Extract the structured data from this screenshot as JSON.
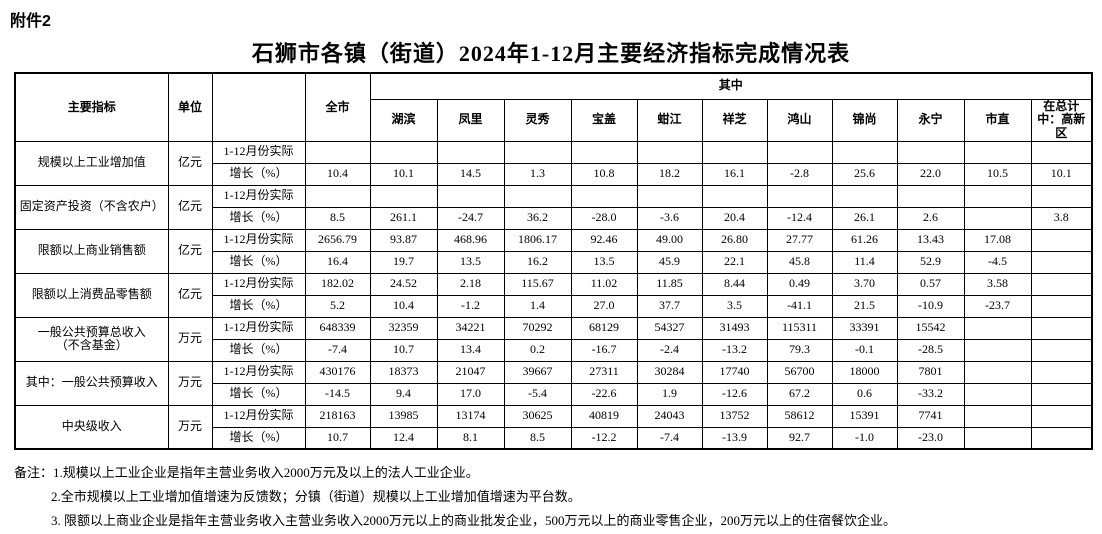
{
  "attachment_label": "附件2",
  "title": "石狮市各镇（街道）2024年1-12月主要经济指标完成情况表",
  "colors": {
    "text": "#000000",
    "border": "#000000",
    "background": "#ffffff"
  },
  "table": {
    "header": {
      "indicator": "主要指标",
      "unit": "单位",
      "period_col": "",
      "citywide": "全市",
      "among": "其中",
      "towns": [
        "湖滨",
        "凤里",
        "灵秀",
        "宝盖",
        "蚶江",
        "祥芝",
        "鸿山",
        "锦尚",
        "永宁",
        "市直"
      ],
      "hightech": "在总计中：高新区"
    },
    "row_labels": {
      "actual": "1-12月份实际",
      "growth": "增长（%）"
    },
    "column_order": [
      "全市",
      "湖滨",
      "凤里",
      "灵秀",
      "宝盖",
      "蚶江",
      "祥芝",
      "鸿山",
      "锦尚",
      "永宁",
      "市直",
      "在总计中：高新区"
    ],
    "indicators": [
      {
        "name": "规模以上工业增加值",
        "unit": "亿元",
        "actual": [
          "",
          "",
          "",
          "",
          "",
          "",
          "",
          "",
          "",
          "",
          "",
          ""
        ],
        "growth": [
          "10.4",
          "10.1",
          "14.5",
          "1.3",
          "10.8",
          "18.2",
          "16.1",
          "-2.8",
          "25.6",
          "22.0",
          "10.5",
          "10.1"
        ]
      },
      {
        "name": "固定资产投资（不含农户）",
        "unit": "亿元",
        "actual": [
          "",
          "",
          "",
          "",
          "",
          "",
          "",
          "",
          "",
          "",
          "",
          ""
        ],
        "growth": [
          "8.5",
          "261.1",
          "-24.7",
          "36.2",
          "-28.0",
          "-3.6",
          "20.4",
          "-12.4",
          "26.1",
          "2.6",
          "",
          "3.8"
        ]
      },
      {
        "name": "限额以上商业销售额",
        "unit": "亿元",
        "actual": [
          "2656.79",
          "93.87",
          "468.96",
          "1806.17",
          "92.46",
          "49.00",
          "26.80",
          "27.77",
          "61.26",
          "13.43",
          "17.08",
          ""
        ],
        "growth": [
          "16.4",
          "19.7",
          "13.5",
          "16.2",
          "13.5",
          "45.9",
          "22.1",
          "45.8",
          "11.4",
          "52.9",
          "-4.5",
          ""
        ]
      },
      {
        "name": "限额以上消费品零售额",
        "unit": "亿元",
        "actual": [
          "182.02",
          "24.52",
          "2.18",
          "115.67",
          "11.02",
          "11.85",
          "8.44",
          "0.49",
          "3.70",
          "0.57",
          "3.58",
          ""
        ],
        "growth": [
          "5.2",
          "10.4",
          "-1.2",
          "1.4",
          "27.0",
          "37.7",
          "3.5",
          "-41.1",
          "21.5",
          "-10.9",
          "-23.7",
          ""
        ]
      },
      {
        "name": "一般公共预算总收入\n（不含基金）",
        "unit": "万元",
        "actual": [
          "648339",
          "32359",
          "34221",
          "70292",
          "68129",
          "54327",
          "31493",
          "115311",
          "33391",
          "15542",
          "",
          ""
        ],
        "growth": [
          "-7.4",
          "10.7",
          "13.4",
          "0.2",
          "-16.7",
          "-2.4",
          "-13.2",
          "79.3",
          "-0.1",
          "-28.5",
          "",
          ""
        ]
      },
      {
        "name": "其中：一般公共预算收入",
        "unit": "万元",
        "actual": [
          "430176",
          "18373",
          "21047",
          "39667",
          "27311",
          "30284",
          "17740",
          "56700",
          "18000",
          "7801",
          "",
          ""
        ],
        "growth": [
          "-14.5",
          "9.4",
          "17.0",
          "-5.4",
          "-22.6",
          "1.9",
          "-12.6",
          "67.2",
          "0.6",
          "-33.2",
          "",
          ""
        ]
      },
      {
        "name": "中央级收入",
        "unit": "万元",
        "actual": [
          "218163",
          "13985",
          "13174",
          "30625",
          "40819",
          "24043",
          "13752",
          "58612",
          "15391",
          "7741",
          "",
          ""
        ],
        "growth": [
          "10.7",
          "12.4",
          "8.1",
          "8.5",
          "-12.2",
          "-7.4",
          "-13.9",
          "92.7",
          "-1.0",
          "-23.0",
          "",
          ""
        ]
      }
    ]
  },
  "notes": {
    "label": "备注：",
    "items": [
      "1.规模以上工业企业是指年主营业务收入2000万元及以上的法人工业企业。",
      "2.全市规模以上工业增加值增速为反馈数；分镇（街道）规模以上工业增加值增速为平台数。",
      "3. 限额以上商业企业是指年主营业务收入主营业务收入2000万元以上的商业批发企业，500万元以上的商业零售企业，200万元以上的住宿餐饮企业。"
    ]
  }
}
